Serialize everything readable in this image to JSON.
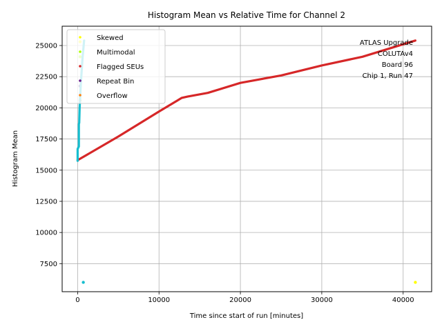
{
  "chart_data": {
    "type": "scatter",
    "title": "Histogram Mean vs Relative Time for Channel 2",
    "xlabel": "Time since start of run [minutes]",
    "ylabel": "Histogram Mean",
    "xlim": [
      -1900,
      43500
    ],
    "ylim": [
      5250,
      26550
    ],
    "xticks": [
      0,
      10000,
      20000,
      30000,
      40000
    ],
    "yticks": [
      7500,
      10000,
      12500,
      15000,
      17500,
      20000,
      22500,
      25000
    ],
    "grid": true,
    "legend_position": "top-left",
    "annotation": [
      "ATLAS Upgrade",
      "COLUTAv4",
      "Board 96",
      "Chip 1, Run 47"
    ],
    "series": [
      {
        "name": "Skewed",
        "color": "#ffff00",
        "points": [
          [
            41500,
            6000
          ],
          [
            300,
            25300
          ]
        ]
      },
      {
        "name": "Multimodal",
        "color": "#aaff00",
        "points": [
          [
            300,
            24100
          ]
        ]
      },
      {
        "name": "Flagged SEUs",
        "color": "#d62728",
        "trend": [
          [
            0,
            15800
          ],
          [
            5000,
            17700
          ],
          [
            10000,
            19700
          ],
          [
            12800,
            20800
          ],
          [
            13500,
            20900
          ],
          [
            16000,
            21200
          ],
          [
            20000,
            22000
          ],
          [
            25000,
            22600
          ],
          [
            30000,
            23400
          ],
          [
            35000,
            24100
          ],
          [
            41500,
            25400
          ]
        ]
      },
      {
        "name": "Repeat Bin",
        "color": "#6a1a8a",
        "points": [
          [
            300,
            21750
          ]
        ]
      },
      {
        "name": "Overflow",
        "color": "#ff7f0e",
        "points": [
          [
            300,
            20600
          ]
        ]
      },
      {
        "name": "",
        "color": "#17becf",
        "trend": [
          [
            0,
            15750
          ],
          [
            0,
            16700
          ],
          [
            150,
            16900
          ],
          [
            150,
            18700
          ],
          [
            200,
            18800
          ],
          [
            250,
            20000
          ],
          [
            400,
            22000
          ],
          [
            600,
            24000
          ],
          [
            800,
            25400
          ]
        ],
        "points": [
          [
            700,
            6000
          ]
        ]
      }
    ]
  }
}
